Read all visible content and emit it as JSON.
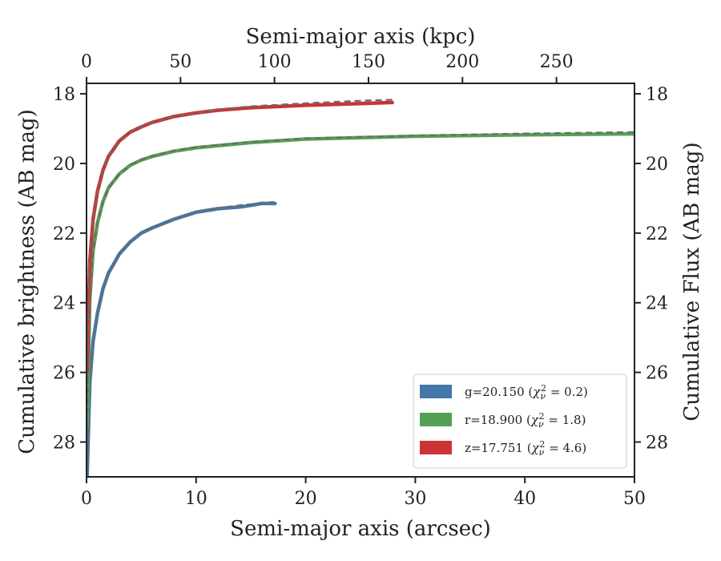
{
  "chart_data": {
    "type": "line",
    "x_axis_bottom": {
      "label": "Semi-major axis (arcsec)",
      "range": [
        0,
        50
      ],
      "ticks": [
        0,
        10,
        20,
        30,
        40,
        50
      ]
    },
    "x_axis_top": {
      "label": "Semi-major axis (kpc)",
      "range": [
        0,
        291.5
      ],
      "ticks": [
        0,
        50,
        100,
        150,
        200,
        250
      ]
    },
    "y_axis_left": {
      "label": "Cumulative brightness (AB mag)",
      "range": [
        29,
        17.7
      ],
      "inverted": true,
      "ticks": [
        18,
        20,
        22,
        24,
        26,
        28
      ]
    },
    "y_axis_right": {
      "label": "Cumulative Flux (AB mag)",
      "range": [
        29,
        17.7
      ],
      "inverted": true,
      "ticks": [
        18,
        20,
        22,
        24,
        26,
        28
      ]
    },
    "legend_position": "lower-right",
    "grid": false,
    "model_line": {
      "style": "dashed",
      "color": "#6b6b6b"
    },
    "series": [
      {
        "name": "g=20.150",
        "chi_label": "χ",
        "chi_sub": "ν",
        "chi_sup": "2",
        "chi_value": " = 0.2)",
        "color": "#4477aa",
        "x": [
          0.05,
          0.3,
          0.6,
          1,
          1.5,
          2,
          3,
          4,
          5,
          6,
          8,
          10,
          12,
          14,
          15,
          16,
          17.2
        ],
        "y": [
          29.0,
          26.3,
          25.1,
          24.3,
          23.6,
          23.15,
          22.6,
          22.25,
          22.0,
          21.85,
          21.6,
          21.4,
          21.3,
          21.25,
          21.2,
          21.15,
          21.15
        ],
        "model_x": [
          0.05,
          0.3,
          0.6,
          1,
          1.5,
          2,
          3,
          4,
          5,
          6,
          8,
          10,
          12,
          14,
          16,
          17.2
        ],
        "model_y": [
          28.9,
          26.3,
          25.1,
          24.3,
          23.6,
          23.15,
          22.6,
          22.25,
          22.0,
          21.85,
          21.6,
          21.4,
          21.28,
          21.2,
          21.14,
          21.1
        ]
      },
      {
        "name": "r=18.900",
        "chi_label": "χ",
        "chi_sub": "ν",
        "chi_sup": "2",
        "chi_value": " = 1.8)",
        "color": "#55a055",
        "x": [
          0.05,
          0.3,
          0.6,
          1,
          1.5,
          2,
          3,
          4,
          5,
          6,
          8,
          10,
          15,
          20,
          30,
          40,
          50
        ],
        "y": [
          27.5,
          23.9,
          22.5,
          21.7,
          21.1,
          20.7,
          20.3,
          20.05,
          19.9,
          19.8,
          19.65,
          19.55,
          19.4,
          19.3,
          19.22,
          19.18,
          19.15
        ],
        "model_x": [
          0.05,
          0.3,
          0.6,
          1,
          1.5,
          2,
          3,
          4,
          5,
          6,
          8,
          10,
          15,
          20,
          30,
          40,
          50
        ],
        "model_y": [
          27.5,
          23.9,
          22.5,
          21.7,
          21.1,
          20.7,
          20.3,
          20.05,
          19.9,
          19.78,
          19.63,
          19.53,
          19.38,
          19.28,
          19.2,
          19.14,
          19.1
        ]
      },
      {
        "name": "z=17.751",
        "chi_label": "χ",
        "chi_sub": "ν",
        "chi_sup": "2",
        "chi_value": " = 4.6)",
        "color": "#cc3333",
        "x": [
          0.05,
          0.3,
          0.6,
          1,
          1.5,
          2,
          3,
          4,
          5,
          6,
          8,
          10,
          12,
          15,
          20,
          25,
          27.9
        ],
        "y": [
          26.0,
          22.8,
          21.6,
          20.8,
          20.2,
          19.8,
          19.35,
          19.1,
          18.95,
          18.82,
          18.65,
          18.55,
          18.47,
          18.4,
          18.33,
          18.28,
          18.25
        ],
        "model_x": [
          0.05,
          0.3,
          0.6,
          1,
          1.5,
          2,
          3,
          4,
          5,
          6,
          8,
          10,
          12,
          15,
          20,
          25,
          27.9
        ],
        "model_y": [
          26.0,
          22.8,
          21.6,
          20.8,
          20.2,
          19.8,
          19.35,
          19.1,
          18.95,
          18.82,
          18.65,
          18.55,
          18.45,
          18.36,
          18.27,
          18.2,
          18.17
        ]
      }
    ]
  }
}
